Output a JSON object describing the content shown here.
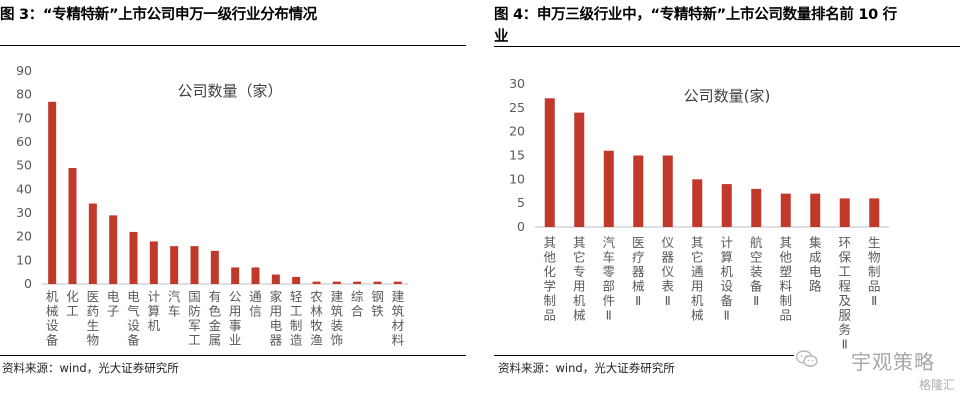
{
  "left": {
    "title": "图 3：“专精特新”上市公司申万一级行业分布情况",
    "source": "资料来源：wind，光大证券研究所"
  },
  "right": {
    "title_line1": "图 4：申万三级行业中，“专精特新”上市公司数量排名前 10 行",
    "title_line2": "业",
    "source": "资料来源：wind，光大证券研究所"
  },
  "watermark": {
    "text": "宇观策略",
    "logo": "格隆汇",
    "icon": "wechat-icon"
  },
  "colors": {
    "bar": "#c0392b",
    "axis": "#bfbfbf",
    "text": "#595959"
  },
  "chart_data": [
    {
      "type": "bar",
      "title": "公司数量（家）",
      "categories": [
        "机械设备",
        "化工",
        "医药生物",
        "电子",
        "电气设备",
        "计算机",
        "汽车",
        "国防军工",
        "有色金属",
        "公用事业",
        "通信",
        "家用电器",
        "轻工制造",
        "农林牧渔",
        "建筑装饰",
        "综合",
        "钢铁",
        "建筑材料"
      ],
      "values": [
        77,
        49,
        34,
        29,
        22,
        18,
        16,
        16,
        14,
        7,
        7,
        4,
        3,
        1,
        1,
        1,
        1,
        1
      ],
      "ylim": [
        0,
        90
      ],
      "yticks": [
        0,
        10,
        20,
        30,
        40,
        50,
        60,
        70,
        80,
        90
      ]
    },
    {
      "type": "bar",
      "title": "公司数量(家)",
      "categories": [
        "其他化学制品",
        "其它专用机械",
        "汽车零部件Ⅱ",
        "医疗器械Ⅱ",
        "仪器仪表Ⅱ",
        "其它通用机械",
        "计算机设备Ⅱ",
        "航空装备Ⅱ",
        "其他塑料制品",
        "集成电路",
        "环保工程及服务Ⅱ",
        "生物制品Ⅱ"
      ],
      "values": [
        27,
        24,
        16,
        15,
        15,
        10,
        9,
        8,
        7,
        7,
        6,
        6
      ],
      "ylim": [
        0,
        30
      ],
      "yticks": [
        0,
        5,
        10,
        15,
        20,
        25,
        30
      ]
    }
  ]
}
